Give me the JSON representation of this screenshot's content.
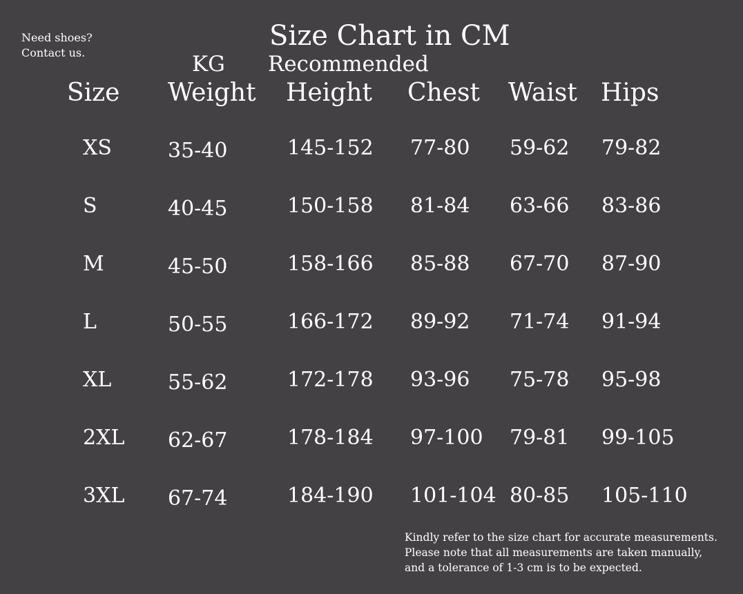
{
  "side_note": [
    "Need shoes?",
    "Contact us."
  ],
  "title": "Size Chart in CM",
  "weight_unit": "KG",
  "height_note": "Recommended",
  "headers": [
    "Size",
    "Weight",
    "Height",
    "Chest",
    "Waist",
    "Hips"
  ],
  "rows": [
    [
      "XS",
      "35-40",
      "145-152",
      "77-80",
      "59-62",
      "79-82"
    ],
    [
      "S",
      "40-45",
      "150-158",
      "81-84",
      "63-66",
      "83-86"
    ],
    [
      "M",
      "45-50",
      "158-166",
      "85-88",
      "67-70",
      "87-90"
    ],
    [
      "L",
      "50-55",
      "166-172",
      "89-92",
      "71-74",
      "91-94"
    ],
    [
      "XL",
      "55-62",
      "172-178",
      "93-96",
      "75-78",
      "95-98"
    ],
    [
      "2XL",
      "62-67",
      "178-184",
      "97-100",
      "79-81",
      "99-105"
    ],
    [
      "3XL",
      "67-74",
      "184-190",
      "101-104",
      "80-85",
      "105-110"
    ]
  ],
  "footer_note": [
    "Kindly refer to the size chart for accurate measurements.",
    "Please note that all measurements are taken manually,",
    "and a tolerance of 1-3 cm is to be expected."
  ],
  "colors": {
    "background": "#444144",
    "text": "#ffffff"
  }
}
